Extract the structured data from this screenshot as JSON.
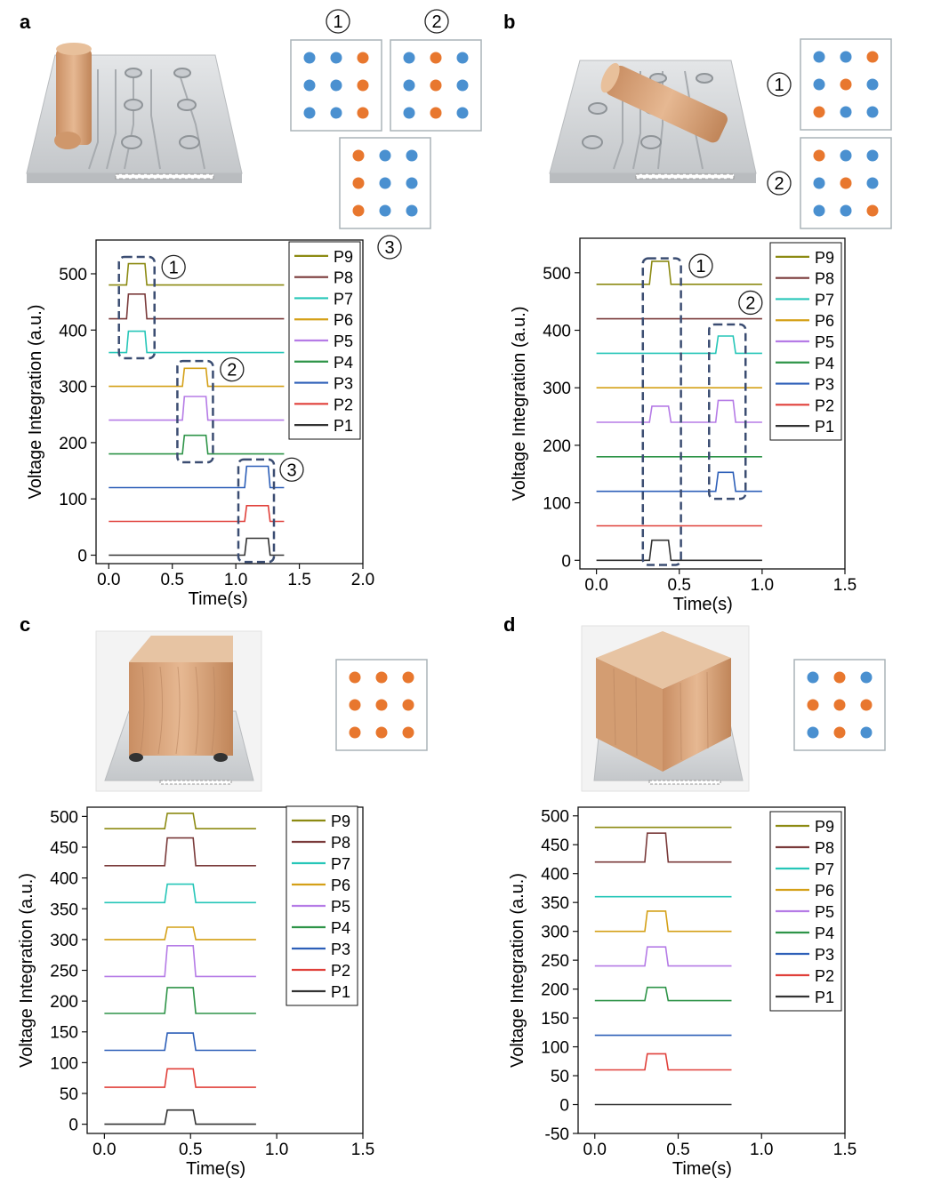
{
  "figure": {
    "panel_labels": [
      "a",
      "b",
      "c",
      "d"
    ],
    "colors": {
      "orange_dot": "#e8772e",
      "blue_dot": "#4a90d0",
      "bracket": "#3b4d72",
      "wood": "#d9a57c",
      "board": "#d6d8da"
    }
  },
  "dot_grids": {
    "a": [
      {
        "label": "①",
        "pattern": [
          "BBO",
          "BBO",
          "BBO"
        ]
      },
      {
        "label": "②",
        "pattern": [
          "BOB",
          "BOB",
          "BOB"
        ]
      },
      {
        "label": "③",
        "pattern": [
          "OBB",
          "OBB",
          "OBB"
        ]
      }
    ],
    "b": [
      {
        "label": "①",
        "pattern": [
          "BBO",
          "BOB",
          "OBB"
        ]
      },
      {
        "label": "②",
        "pattern": [
          "OBB",
          "BOB",
          "BBO"
        ]
      }
    ],
    "c": [
      {
        "label": "",
        "pattern": [
          "OOO",
          "OOO",
          "OOO"
        ]
      }
    ],
    "d": [
      {
        "label": "",
        "pattern": [
          "BOB",
          "OOO",
          "BOB"
        ]
      }
    ]
  },
  "chart_data": [
    {
      "panel": "a",
      "type": "line",
      "xlabel": "Time(s)",
      "ylabel": "Voltage Integration (a.u.)",
      "xlim": [
        -0.1,
        2.0
      ],
      "ylim": [
        -15,
        560
      ],
      "xticks": [
        "0.0",
        "0.5",
        "1.0",
        "1.5",
        "2.0"
      ],
      "xtick_values": [
        0,
        0.5,
        1.0,
        1.5,
        2.0
      ],
      "yticks": [
        "0",
        "100",
        "200",
        "300",
        "400",
        "500"
      ],
      "ytick_values": [
        0,
        100,
        200,
        300,
        400,
        500
      ],
      "x_end": 1.38,
      "legend": [
        "P9",
        "P8",
        "P7",
        "P6",
        "P5",
        "P4",
        "P3",
        "P2",
        "P1"
      ],
      "series": [
        {
          "name": "P1",
          "color": "#333333",
          "baseline": 0,
          "pulses": [
            {
              "start": 1.07,
              "end": 1.27,
              "height": 30
            }
          ]
        },
        {
          "name": "P2",
          "color": "#e0403a",
          "baseline": 60,
          "pulses": [
            {
              "start": 1.07,
              "end": 1.27,
              "height": 28
            }
          ]
        },
        {
          "name": "P3",
          "color": "#2d5fb8",
          "baseline": 120,
          "pulses": [
            {
              "start": 1.07,
              "end": 1.27,
              "height": 38
            }
          ]
        },
        {
          "name": "P4",
          "color": "#2e9448",
          "baseline": 180,
          "pulses": [
            {
              "start": 0.58,
              "end": 0.78,
              "height": 33
            }
          ]
        },
        {
          "name": "P5",
          "color": "#b57be6",
          "baseline": 240,
          "pulses": [
            {
              "start": 0.58,
              "end": 0.78,
              "height": 42
            }
          ]
        },
        {
          "name": "P6",
          "color": "#d4a017",
          "baseline": 300,
          "pulses": [
            {
              "start": 0.58,
              "end": 0.78,
              "height": 32
            }
          ]
        },
        {
          "name": "P7",
          "color": "#26c6b8",
          "baseline": 360,
          "pulses": [
            {
              "start": 0.14,
              "end": 0.3,
              "height": 38
            }
          ]
        },
        {
          "name": "P8",
          "color": "#7a3a3a",
          "baseline": 420,
          "pulses": [
            {
              "start": 0.14,
              "end": 0.3,
              "height": 44
            }
          ]
        },
        {
          "name": "P9",
          "color": "#8c8a12",
          "baseline": 480,
          "pulses": [
            {
              "start": 0.14,
              "end": 0.3,
              "height": 38
            }
          ]
        }
      ],
      "annotations": [
        {
          "label": "①",
          "x0": 0.08,
          "x1": 0.36,
          "y0": 350,
          "y1": 530,
          "lx": 0.51,
          "ly": 512
        },
        {
          "label": "②",
          "x0": 0.54,
          "x1": 0.82,
          "y0": 165,
          "y1": 345,
          "lx": 0.97,
          "ly": 330
        },
        {
          "label": "③",
          "x0": 1.02,
          "x1": 1.3,
          "y0": -12,
          "y1": 170,
          "lx": 1.44,
          "ly": 152
        }
      ]
    },
    {
      "panel": "b",
      "type": "line",
      "xlabel": "Time(s)",
      "ylabel": "Voltage Integration (a.u.)",
      "xlim": [
        -0.1,
        1.5
      ],
      "ylim": [
        -15,
        560
      ],
      "xticks": [
        "0.0",
        "0.5",
        "1.0",
        "1.5"
      ],
      "xtick_values": [
        0,
        0.5,
        1.0,
        1.5
      ],
      "yticks": [
        "0",
        "100",
        "200",
        "300",
        "400",
        "500"
      ],
      "ytick_values": [
        0,
        100,
        200,
        300,
        400,
        500
      ],
      "x_end": 1.0,
      "legend": [
        "P9",
        "P8",
        "P7",
        "P6",
        "P5",
        "P4",
        "P3",
        "P2",
        "P1"
      ],
      "series": [
        {
          "name": "P1",
          "color": "#333333",
          "baseline": 0,
          "pulses": [
            {
              "start": 0.32,
              "end": 0.45,
              "height": 35
            }
          ]
        },
        {
          "name": "P2",
          "color": "#e0403a",
          "baseline": 60,
          "pulses": []
        },
        {
          "name": "P3",
          "color": "#2d5fb8",
          "baseline": 120,
          "pulses": [
            {
              "start": 0.72,
              "end": 0.84,
              "height": 33
            }
          ]
        },
        {
          "name": "P4",
          "color": "#2e9448",
          "baseline": 180,
          "pulses": []
        },
        {
          "name": "P5",
          "color": "#b57be6",
          "baseline": 240,
          "pulses": [
            {
              "start": 0.32,
              "end": 0.45,
              "height": 28
            },
            {
              "start": 0.72,
              "end": 0.84,
              "height": 38
            }
          ]
        },
        {
          "name": "P6",
          "color": "#d4a017",
          "baseline": 300,
          "pulses": []
        },
        {
          "name": "P7",
          "color": "#26c6b8",
          "baseline": 360,
          "pulses": [
            {
              "start": 0.72,
              "end": 0.84,
              "height": 30
            }
          ]
        },
        {
          "name": "P8",
          "color": "#7a3a3a",
          "baseline": 420,
          "pulses": []
        },
        {
          "name": "P9",
          "color": "#8c8a12",
          "baseline": 480,
          "pulses": [
            {
              "start": 0.32,
              "end": 0.45,
              "height": 40
            }
          ]
        }
      ],
      "annotations": [
        {
          "label": "①",
          "x0": 0.28,
          "x1": 0.51,
          "y0": -8,
          "y1": 525,
          "lx": 0.63,
          "ly": 512
        },
        {
          "label": "②",
          "x0": 0.68,
          "x1": 0.9,
          "y0": 107,
          "y1": 410,
          "lx": 0.93,
          "ly": 448
        }
      ]
    },
    {
      "panel": "c",
      "type": "line",
      "xlabel": "Time(s)",
      "ylabel": "Voltage Integration (a.u.)",
      "xlim": [
        -0.1,
        1.5
      ],
      "ylim": [
        -15,
        515
      ],
      "xticks": [
        "0.0",
        "0.5",
        "1.0",
        "1.5"
      ],
      "xtick_values": [
        0,
        0.5,
        1.0,
        1.5
      ],
      "yticks": [
        "0",
        "50",
        "100",
        "150",
        "200",
        "250",
        "300",
        "350",
        "400",
        "450",
        "500"
      ],
      "ytick_values": [
        0,
        50,
        100,
        150,
        200,
        250,
        300,
        350,
        400,
        450,
        500
      ],
      "x_end": 0.88,
      "legend": [
        "P9",
        "P8",
        "P7",
        "P6",
        "P5",
        "P4",
        "P3",
        "P2",
        "P1"
      ],
      "series": [
        {
          "name": "P1",
          "color": "#333333",
          "baseline": 0,
          "pulses": [
            {
              "start": 0.35,
              "end": 0.53,
              "height": 23
            }
          ]
        },
        {
          "name": "P2",
          "color": "#e0403a",
          "baseline": 60,
          "pulses": [
            {
              "start": 0.35,
              "end": 0.53,
              "height": 30
            }
          ]
        },
        {
          "name": "P3",
          "color": "#2d5fb8",
          "baseline": 120,
          "pulses": [
            {
              "start": 0.35,
              "end": 0.53,
              "height": 28
            }
          ]
        },
        {
          "name": "P4",
          "color": "#2e9448",
          "baseline": 180,
          "pulses": [
            {
              "start": 0.35,
              "end": 0.53,
              "height": 42
            }
          ]
        },
        {
          "name": "P5",
          "color": "#b57be6",
          "baseline": 240,
          "pulses": [
            {
              "start": 0.35,
              "end": 0.53,
              "height": 50
            }
          ]
        },
        {
          "name": "P6",
          "color": "#d4a017",
          "baseline": 300,
          "pulses": [
            {
              "start": 0.35,
              "end": 0.53,
              "height": 20
            }
          ]
        },
        {
          "name": "P7",
          "color": "#26c6b8",
          "baseline": 360,
          "pulses": [
            {
              "start": 0.35,
              "end": 0.53,
              "height": 30
            }
          ]
        },
        {
          "name": "P8",
          "color": "#7a3a3a",
          "baseline": 420,
          "pulses": [
            {
              "start": 0.35,
              "end": 0.53,
              "height": 45
            }
          ]
        },
        {
          "name": "P9",
          "color": "#8c8a12",
          "baseline": 480,
          "pulses": [
            {
              "start": 0.35,
              "end": 0.53,
              "height": 25
            }
          ]
        }
      ],
      "annotations": []
    },
    {
      "panel": "d",
      "type": "line",
      "xlabel": "Time(s)",
      "ylabel": "Voltage Integration (a.u.)",
      "xlim": [
        -0.1,
        1.5
      ],
      "ylim": [
        -50,
        515
      ],
      "xticks": [
        "0.0",
        "0.5",
        "1.0",
        "1.5"
      ],
      "xtick_values": [
        0,
        0.5,
        1.0,
        1.5
      ],
      "yticks": [
        "-50",
        "0",
        "50",
        "100",
        "150",
        "200",
        "250",
        "300",
        "350",
        "400",
        "450",
        "500"
      ],
      "ytick_values": [
        -50,
        0,
        50,
        100,
        150,
        200,
        250,
        300,
        350,
        400,
        450,
        500
      ],
      "x_end": 0.82,
      "legend": [
        "P9",
        "P8",
        "P7",
        "P6",
        "P5",
        "P4",
        "P3",
        "P2",
        "P1"
      ],
      "series": [
        {
          "name": "P1",
          "color": "#333333",
          "baseline": 0,
          "pulses": []
        },
        {
          "name": "P2",
          "color": "#e0403a",
          "baseline": 60,
          "pulses": [
            {
              "start": 0.3,
              "end": 0.44,
              "height": 28
            }
          ]
        },
        {
          "name": "P3",
          "color": "#2d5fb8",
          "baseline": 120,
          "pulses": []
        },
        {
          "name": "P4",
          "color": "#2e9448",
          "baseline": 180,
          "pulses": [
            {
              "start": 0.3,
              "end": 0.44,
              "height": 23
            }
          ]
        },
        {
          "name": "P5",
          "color": "#b57be6",
          "baseline": 240,
          "pulses": [
            {
              "start": 0.3,
              "end": 0.44,
              "height": 33
            }
          ]
        },
        {
          "name": "P6",
          "color": "#d4a017",
          "baseline": 300,
          "pulses": [
            {
              "start": 0.3,
              "end": 0.44,
              "height": 35
            }
          ]
        },
        {
          "name": "P7",
          "color": "#26c6b8",
          "baseline": 360,
          "pulses": []
        },
        {
          "name": "P8",
          "color": "#7a3a3a",
          "baseline": 420,
          "pulses": [
            {
              "start": 0.3,
              "end": 0.44,
              "height": 50
            }
          ]
        },
        {
          "name": "P9",
          "color": "#8c8a12",
          "baseline": 480,
          "pulses": []
        }
      ],
      "annotations": []
    }
  ]
}
